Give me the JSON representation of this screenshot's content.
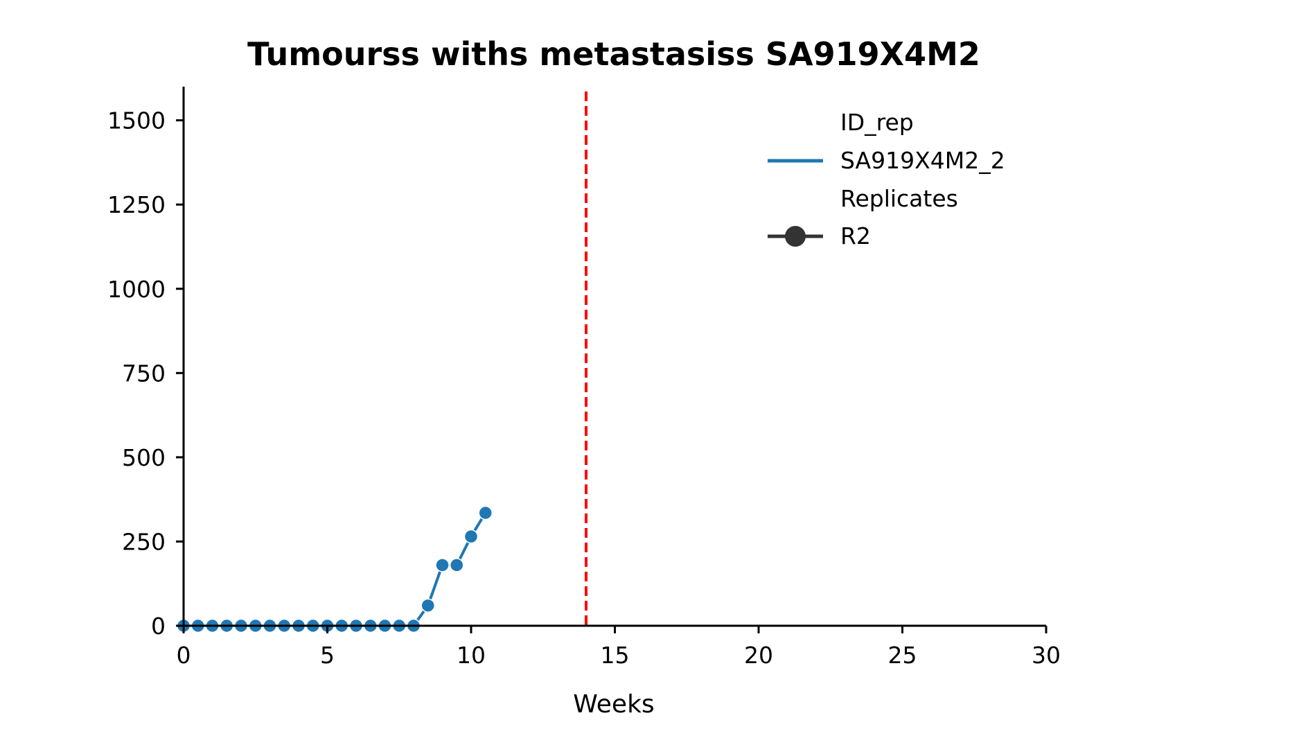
{
  "chart_data": {
    "type": "line",
    "title": "Tumourss withs metastasiss SA919X4M2",
    "xlabel": "Weeks",
    "ylabel": "",
    "xlim": [
      0,
      30
    ],
    "ylim": [
      0,
      1600
    ],
    "xticks": [
      0,
      5,
      10,
      15,
      20,
      25,
      30
    ],
    "yticks": [
      0,
      250,
      500,
      750,
      1000,
      1250,
      1500
    ],
    "grid": false,
    "legend_position": "top-right",
    "series": [
      {
        "name": "SA919X4M2_2",
        "color": "#1f77b4",
        "marker": "circle",
        "x": [
          0,
          0.5,
          1,
          1.5,
          2,
          2.5,
          3,
          3.5,
          4,
          4.5,
          5,
          5.5,
          6,
          6.5,
          7,
          7.5,
          8,
          8.5,
          9,
          9.5,
          10,
          10.5
        ],
        "y": [
          0,
          0,
          0,
          0,
          0,
          0,
          0,
          0,
          0,
          0,
          0,
          0,
          0,
          0,
          0,
          0,
          0,
          60,
          180,
          180,
          265,
          335
        ]
      }
    ],
    "vline": {
      "x": 14,
      "color": "#ff0000",
      "style": "dashed"
    },
    "legend": {
      "hue_title": "ID_rep",
      "hue_entry": "SA919X4M2_2",
      "style_title": "Replicates",
      "style_entry": "R2",
      "style_color": "#333333"
    }
  }
}
